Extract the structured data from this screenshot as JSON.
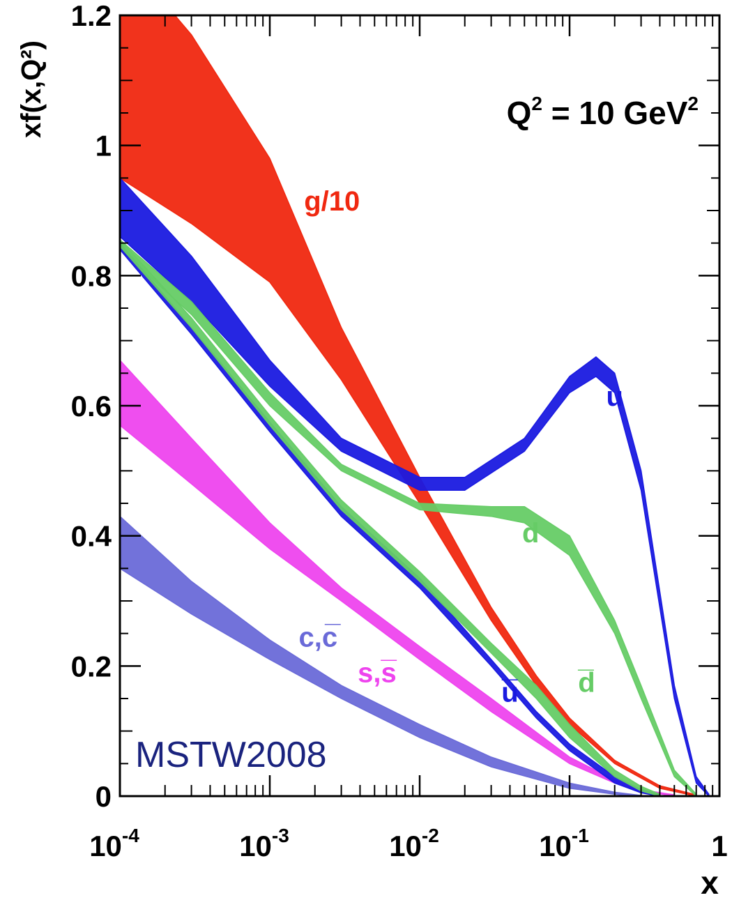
{
  "chart_data": {
    "type": "area",
    "title": "",
    "annotation": {
      "text": "Q² = 10 GeV²",
      "base": "Q",
      "exp1": "2",
      "mid": " = 10 GeV",
      "exp2": "2"
    },
    "watermark": "MSTW2008",
    "xlabel": "x",
    "ylabel": "xf(x,Q²)",
    "xscale": "log",
    "xlim": [
      0.0001,
      1
    ],
    "ylim": [
      0,
      1.2
    ],
    "x_ticks": [
      {
        "value": 0.0001,
        "base": "10",
        "exp": "-4"
      },
      {
        "value": 0.001,
        "base": "10",
        "exp": "-3"
      },
      {
        "value": 0.01,
        "base": "10",
        "exp": "-2"
      },
      {
        "value": 0.1,
        "base": "10",
        "exp": "-1"
      },
      {
        "value": 1,
        "base": "1",
        "exp": ""
      }
    ],
    "y_ticks": [
      {
        "value": 0,
        "label": "0"
      },
      {
        "value": 0.2,
        "label": "0.2"
      },
      {
        "value": 0.4,
        "label": "0.4"
      },
      {
        "value": 0.6,
        "label": "0.6"
      },
      {
        "value": 0.8,
        "label": "0.8"
      },
      {
        "value": 1,
        "label": "1"
      },
      {
        "value": 1.2,
        "label": "1.2"
      }
    ],
    "series": [
      {
        "name": "g/10",
        "color": "#f02810",
        "label_x": 0.0026,
        "label_y": 0.9,
        "x": [
          0.0001,
          0.0003,
          0.001,
          0.003,
          0.01,
          0.03,
          0.06,
          0.1,
          0.2,
          0.4,
          0.7
        ],
        "lower": [
          0.95,
          0.88,
          0.79,
          0.64,
          0.45,
          0.27,
          0.17,
          0.11,
          0.05,
          0.012,
          0.0
        ],
        "upper": [
          1.3,
          1.17,
          0.98,
          0.72,
          0.49,
          0.29,
          0.185,
          0.12,
          0.055,
          0.016,
          0.002
        ]
      },
      {
        "name": "u",
        "color": "#1a1ae0",
        "label_x": 0.2,
        "label_y": 0.6,
        "x": [
          0.0001,
          0.0003,
          0.001,
          0.003,
          0.01,
          0.02,
          0.05,
          0.1,
          0.15,
          0.2,
          0.3,
          0.5,
          0.7,
          0.85
        ],
        "lower": [
          0.86,
          0.76,
          0.63,
          0.53,
          0.47,
          0.47,
          0.53,
          0.62,
          0.645,
          0.62,
          0.47,
          0.15,
          0.02,
          0.0
        ],
        "upper": [
          0.95,
          0.83,
          0.67,
          0.55,
          0.49,
          0.49,
          0.55,
          0.645,
          0.675,
          0.65,
          0.5,
          0.17,
          0.03,
          0.003
        ]
      },
      {
        "name": "d",
        "color": "#66cc66",
        "label_x": 0.055,
        "label_y": 0.39,
        "x": [
          0.0001,
          0.0003,
          0.001,
          0.003,
          0.01,
          0.03,
          0.05,
          0.1,
          0.2,
          0.3,
          0.5,
          0.7
        ],
        "lower": [
          0.84,
          0.74,
          0.6,
          0.5,
          0.44,
          0.43,
          0.42,
          0.37,
          0.25,
          0.15,
          0.03,
          0.0
        ],
        "upper": [
          0.855,
          0.76,
          0.62,
          0.51,
          0.45,
          0.445,
          0.445,
          0.4,
          0.27,
          0.17,
          0.04,
          0.003
        ]
      },
      {
        "name": "s,s̅",
        "color": "#ee44ee",
        "label_x": 0.0052,
        "label_y": 0.175,
        "x": [
          0.0001,
          0.0003,
          0.001,
          0.003,
          0.01,
          0.03,
          0.1,
          0.2,
          0.3,
          0.5
        ],
        "lower": [
          0.57,
          0.48,
          0.38,
          0.3,
          0.21,
          0.13,
          0.05,
          0.02,
          0.008,
          0.0
        ],
        "upper": [
          0.67,
          0.55,
          0.42,
          0.32,
          0.23,
          0.15,
          0.06,
          0.025,
          0.01,
          0.002
        ]
      },
      {
        "name": "c,c̅",
        "color": "#6a6ad8",
        "label_x": 0.0021,
        "label_y": 0.23,
        "x": [
          0.0001,
          0.0003,
          0.001,
          0.003,
          0.01,
          0.03,
          0.1,
          0.2,
          0.3
        ],
        "lower": [
          0.35,
          0.28,
          0.21,
          0.15,
          0.09,
          0.045,
          0.012,
          0.003,
          0.0
        ],
        "upper": [
          0.43,
          0.33,
          0.24,
          0.17,
          0.11,
          0.06,
          0.02,
          0.006,
          0.001
        ]
      },
      {
        "name": "u̅",
        "color": "#1a1ae0",
        "label_x": 0.04,
        "label_y": 0.145,
        "x": [
          0.0001,
          0.0003,
          0.001,
          0.003,
          0.01,
          0.03,
          0.06,
          0.1,
          0.2,
          0.3,
          0.4
        ],
        "lower": [
          0.84,
          0.71,
          0.56,
          0.43,
          0.32,
          0.2,
          0.12,
          0.07,
          0.02,
          0.005,
          0.0
        ],
        "upper": [
          0.85,
          0.72,
          0.575,
          0.445,
          0.335,
          0.21,
          0.13,
          0.08,
          0.03,
          0.01,
          0.002
        ]
      },
      {
        "name": "d̅",
        "color": "#66cc66",
        "label_x": 0.13,
        "label_y": 0.16,
        "x": [
          0.0001,
          0.0003,
          0.001,
          0.003,
          0.01,
          0.03,
          0.06,
          0.1,
          0.2,
          0.3,
          0.4
        ],
        "lower": [
          0.845,
          0.72,
          0.57,
          0.44,
          0.33,
          0.22,
          0.15,
          0.09,
          0.03,
          0.008,
          0.0
        ],
        "upper": [
          0.855,
          0.735,
          0.585,
          0.455,
          0.345,
          0.235,
          0.17,
          0.11,
          0.04,
          0.015,
          0.003
        ]
      }
    ],
    "grid": false,
    "legend": "none"
  }
}
